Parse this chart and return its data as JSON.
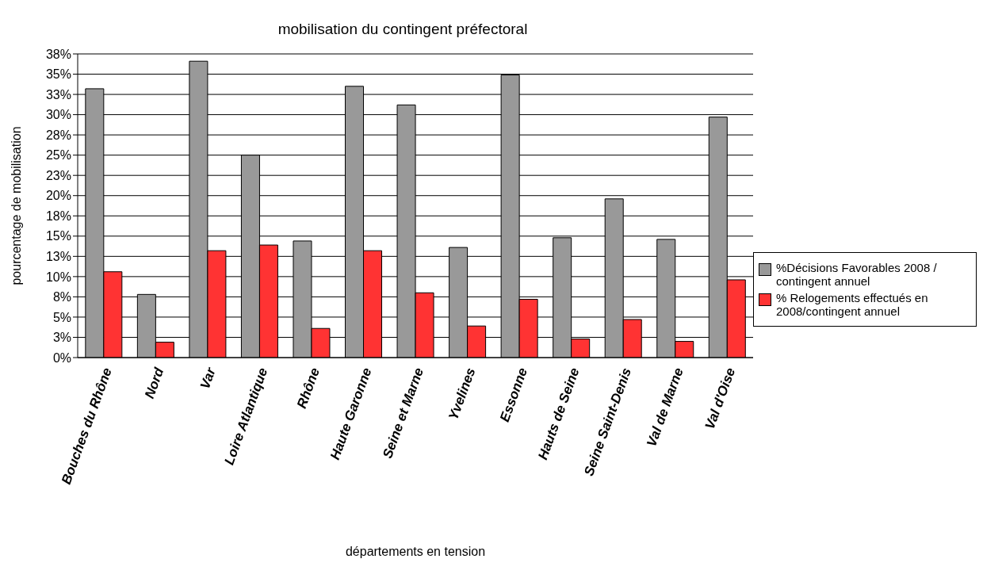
{
  "chart_data": {
    "type": "bar",
    "title": "mobilisation du contingent préfectoral",
    "xlabel": "départements en tension",
    "ylabel": "pourcentage de mobilisation",
    "categories": [
      "Bouches du Rhône",
      "Nord",
      "Var",
      "Loire Atlantique",
      "Rhône",
      "Haute Garonne",
      "Seine et Marne",
      "Yvelines",
      "Essonne",
      "Hauts de Seine",
      "Seine Saint-Denis",
      "Val de Marne",
      "Val d'Oise"
    ],
    "series": [
      {
        "name": "%Décisions Favorables 2008 / contingent annuel",
        "color": "#999999",
        "values": [
          33.2,
          7.8,
          36.6,
          25.0,
          14.4,
          33.5,
          31.2,
          13.6,
          34.9,
          14.8,
          19.6,
          14.6,
          29.7
        ]
      },
      {
        "name": "% Relogements effectués en 2008/contingent annuel",
        "color": "#ff3333",
        "values": [
          10.6,
          1.9,
          13.2,
          13.9,
          3.6,
          13.2,
          8.0,
          3.9,
          7.2,
          2.3,
          4.7,
          2.0,
          9.6
        ]
      }
    ],
    "ylim": [
      0,
      37.5
    ],
    "yticks": [
      {
        "value": 0,
        "label": "0%"
      },
      {
        "value": 2.5,
        "label": "3%"
      },
      {
        "value": 5,
        "label": "5%"
      },
      {
        "value": 7.5,
        "label": "8%"
      },
      {
        "value": 10,
        "label": "10%"
      },
      {
        "value": 12.5,
        "label": "13%"
      },
      {
        "value": 15,
        "label": "15%"
      },
      {
        "value": 17.5,
        "label": "18%"
      },
      {
        "value": 20,
        "label": "20%"
      },
      {
        "value": 22.5,
        "label": "23%"
      },
      {
        "value": 25,
        "label": "25%"
      },
      {
        "value": 27.5,
        "label": "28%"
      },
      {
        "value": 30,
        "label": "30%"
      },
      {
        "value": 32.5,
        "label": "33%"
      },
      {
        "value": 35,
        "label": "35%"
      },
      {
        "value": 37.5,
        "label": "38%"
      }
    ],
    "grid": "y",
    "legend": "right"
  }
}
